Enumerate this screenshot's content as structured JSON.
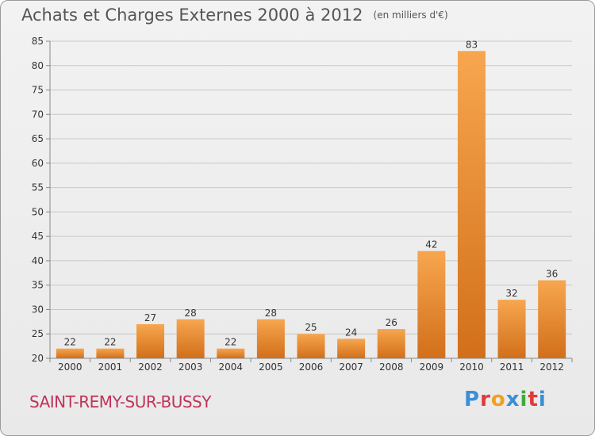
{
  "header": {
    "title": "Achats et Charges Externes 2000 à 2012",
    "unit": "(en milliers d'€)"
  },
  "footer": {
    "commune": "SAINT-REMY-SUR-BUSSY",
    "logo_letters": [
      "P",
      "r",
      "o",
      "x",
      "i",
      "t",
      "i"
    ],
    "logo_colors": [
      "#3a8fd6",
      "#e23a3a",
      "#f0a020",
      "#3a8fd6",
      "#3aae3a",
      "#e23a3a",
      "#3a8fd6"
    ]
  },
  "colors": {
    "bar_light": "#f7a64f",
    "bar_dark": "#d26f1a",
    "grid": "#c8c8c8",
    "axis": "#888888"
  },
  "chart_data": {
    "type": "bar",
    "title": "Achats et Charges Externes 2000 à 2012",
    "subtitle": "(en milliers d'€)",
    "categories": [
      "2000",
      "2001",
      "2002",
      "2003",
      "2004",
      "2005",
      "2006",
      "2007",
      "2008",
      "2009",
      "2010",
      "2011",
      "2012"
    ],
    "values": [
      22,
      22,
      27,
      28,
      22,
      28,
      25,
      24,
      26,
      42,
      83,
      32,
      36
    ],
    "ylim": [
      20,
      85
    ],
    "yticks": [
      20,
      25,
      30,
      35,
      40,
      45,
      50,
      55,
      60,
      65,
      70,
      75,
      80,
      85
    ],
    "grid": true,
    "xlabel": "",
    "ylabel": ""
  }
}
